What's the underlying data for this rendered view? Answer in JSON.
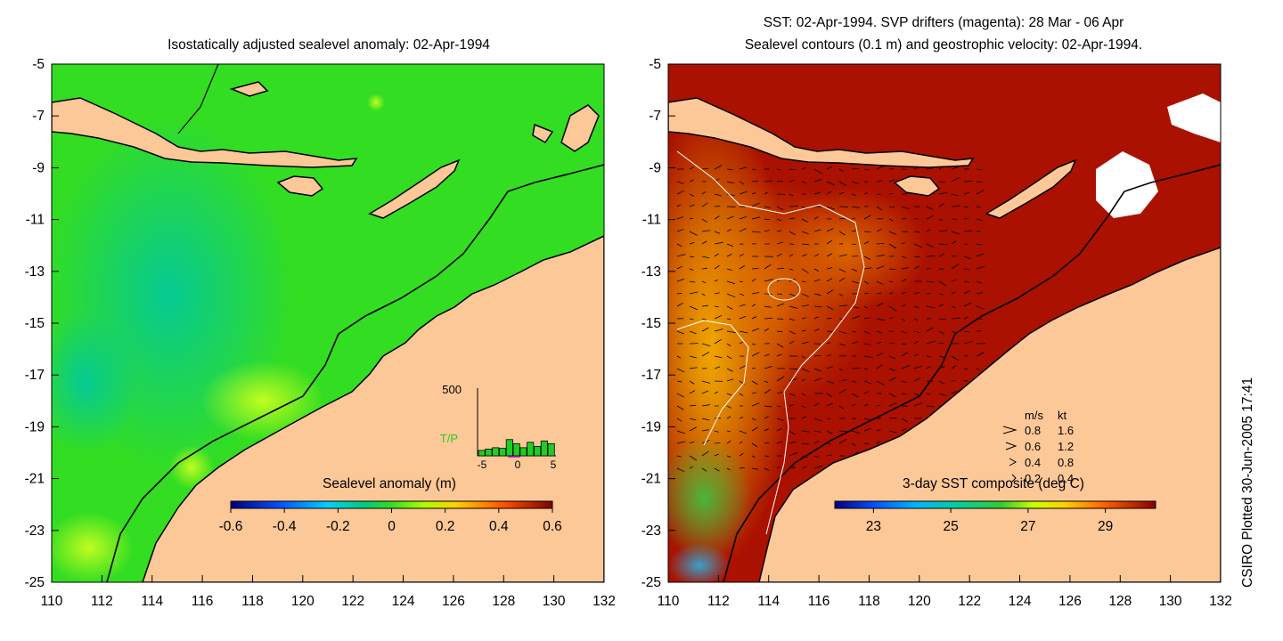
{
  "left_map": {
    "title": "Isostatically adjusted sealevel anomaly: 02-Apr-1994",
    "colorbar": {
      "label": "Sealevel anomaly (m)",
      "ticks": [
        "-0.6",
        "-0.4",
        "-0.2",
        "0",
        "0.2",
        "0.4",
        "0.6"
      ],
      "min": -0.6,
      "max": 0.6,
      "colors": [
        "#00007f",
        "#0000ff",
        "#007fff",
        "#00ffff",
        "#00cc66",
        "#33cc33",
        "#66ff00",
        "#ffff00",
        "#ff8000",
        "#ff0000",
        "#7f0000"
      ]
    },
    "inset": {
      "ymax_label": "500",
      "series_label": "T/P",
      "x_ticks": [
        "-5",
        "0",
        "5"
      ],
      "bar_values": [
        40,
        50,
        60,
        55,
        120,
        90,
        60,
        100,
        70,
        110,
        90
      ]
    },
    "field_color": "#33dd22",
    "land_color": "#fdc898"
  },
  "right_map": {
    "title_line1": "SST: 02-Apr-1994. SVP drifters (magenta): 28 Mar - 06 Apr",
    "title_line2": "Sealevel contours (0.1 m) and geostrophic velocity: 02-Apr-1994.",
    "colorbar": {
      "label": "3-day SST composite (deg C)",
      "ticks": [
        "23",
        "25",
        "27",
        "29"
      ],
      "min": 22.0,
      "max": 30.3
    },
    "velocity_legend": {
      "header_ms": "m/s",
      "header_kt": "kt",
      "rows": [
        {
          "ms": "0.8",
          "kt": "1.6"
        },
        {
          "ms": "0.6",
          "kt": "1.2"
        },
        {
          "ms": "0.4",
          "kt": "0.8"
        },
        {
          "ms": "0.2",
          "kt": "0.4"
        }
      ]
    },
    "land_color": "#fdc898",
    "warm_color": "#aa1100"
  },
  "axes": {
    "lat_ticks": [
      "-5",
      "-7",
      "-9",
      "-11",
      "-13",
      "-15",
      "-17",
      "-19",
      "-21",
      "-23",
      "-25"
    ],
    "lon_ticks": [
      "110",
      "112",
      "114",
      "116",
      "118",
      "120",
      "122",
      "124",
      "126",
      "128",
      "130",
      "132"
    ]
  },
  "footer": "CSIRO Plotted 30-Jun-2005 17:41"
}
